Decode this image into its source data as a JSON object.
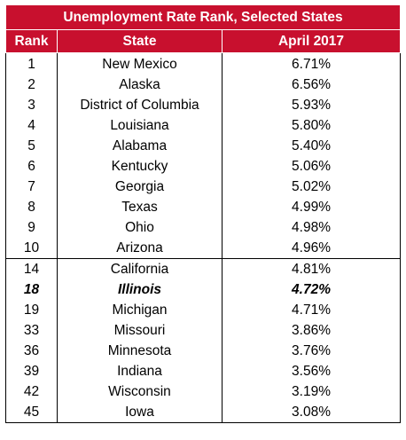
{
  "chart_data": {
    "type": "table",
    "title": "Unemployment Rate Rank, Selected States",
    "columns": [
      "Rank",
      "State",
      "April 2017"
    ],
    "rows": [
      {
        "rank": "1",
        "state": "New Mexico",
        "rate": "6.71%"
      },
      {
        "rank": "2",
        "state": "Alaska",
        "rate": "6.56%"
      },
      {
        "rank": "3",
        "state": "District of Columbia",
        "rate": "5.93%"
      },
      {
        "rank": "4",
        "state": "Louisiana",
        "rate": "5.80%"
      },
      {
        "rank": "5",
        "state": "Alabama",
        "rate": "5.40%"
      },
      {
        "rank": "6",
        "state": "Kentucky",
        "rate": "5.06%"
      },
      {
        "rank": "7",
        "state": "Georgia",
        "rate": "5.02%"
      },
      {
        "rank": "8",
        "state": "Texas",
        "rate": "4.99%"
      },
      {
        "rank": "9",
        "state": "Ohio",
        "rate": "4.98%"
      },
      {
        "rank": "10",
        "state": "Arizona",
        "rate": "4.96%"
      },
      {
        "rank": "14",
        "state": "California",
        "rate": "4.81%"
      },
      {
        "rank": "18",
        "state": "Illinois",
        "rate": "4.72%"
      },
      {
        "rank": "19",
        "state": "Michigan",
        "rate": "4.71%"
      },
      {
        "rank": "33",
        "state": "Missouri",
        "rate": "3.86%"
      },
      {
        "rank": "36",
        "state": "Minnesota",
        "rate": "3.76%"
      },
      {
        "rank": "39",
        "state": "Indiana",
        "rate": "3.56%"
      },
      {
        "rank": "42",
        "state": "Wisconsin",
        "rate": "3.19%"
      },
      {
        "rank": "45",
        "state": "Iowa",
        "rate": "3.08%"
      }
    ],
    "highlight_state": "Illinois",
    "group_break_after_rank": "10"
  },
  "colors": {
    "header_bg": "#c8102e",
    "header_text": "#ffffff",
    "border": "#000000"
  }
}
